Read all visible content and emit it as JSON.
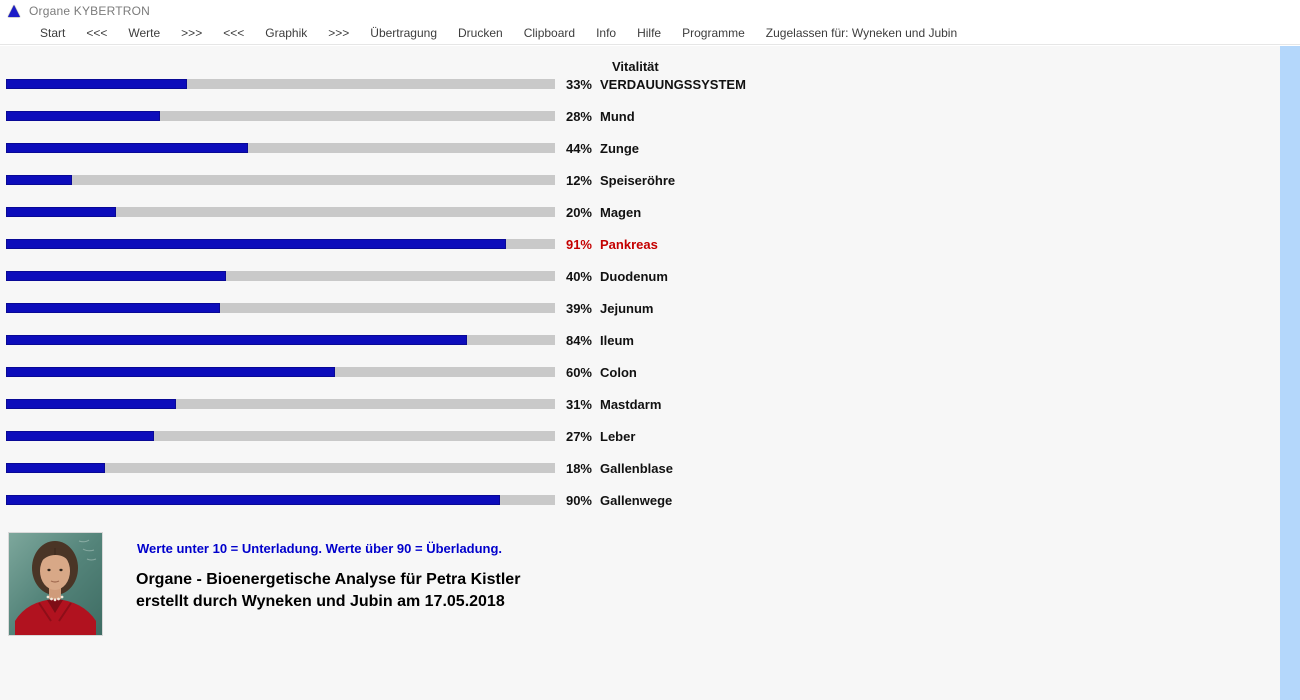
{
  "window": {
    "title": "Organe KYBERTRON",
    "icon": "triangle-icon"
  },
  "menu": {
    "items": [
      "Start",
      "<<<",
      "Werte",
      ">>>",
      "<<<",
      "Graphik",
      ">>>",
      "Übertragung",
      "Drucken",
      "Clipboard",
      "Info",
      "Hilfe",
      "Programme",
      "Zugelassen für: Wyneken und Jubin"
    ]
  },
  "chart_data": {
    "type": "bar",
    "orientation": "horizontal",
    "title": "Vitalität",
    "unit": "%",
    "xlim": [
      0,
      100
    ],
    "categories": [
      "VERDAUUNGSSYSTEM",
      "Mund",
      "Zunge",
      "Speiseröhre",
      "Magen",
      "Pankreas",
      "Duodenum",
      "Jejunum",
      "Ileum",
      "Colon",
      "Mastdarm",
      "Leber",
      "Gallenblase",
      "Gallenwege"
    ],
    "values": [
      33,
      28,
      44,
      12,
      20,
      91,
      40,
      39,
      84,
      60,
      31,
      27,
      18,
      90
    ],
    "highlight": {
      "category": "Pankreas",
      "color": "#c40000"
    },
    "bar_color": "#0d0dbb",
    "track_color": "#c9c9c9",
    "legend": "none",
    "grid": false
  },
  "footer": {
    "note": "Werte unter 10 = Unterladung. Werte über 90 = Überladung.",
    "title_line1": "Organe - Bioenergetische Analyse für Petra Kistler",
    "title_line2": "erstellt durch Wyneken und Jubin am 17.05.2018",
    "photo": "patient-portrait-photo"
  },
  "colors": {
    "accent_blue_bar": "#0d0dbb",
    "highlight_red": "#c40000",
    "note_blue": "#0000cc",
    "side_stripe": "#b4d7fb",
    "background": "#f7f7f7"
  }
}
